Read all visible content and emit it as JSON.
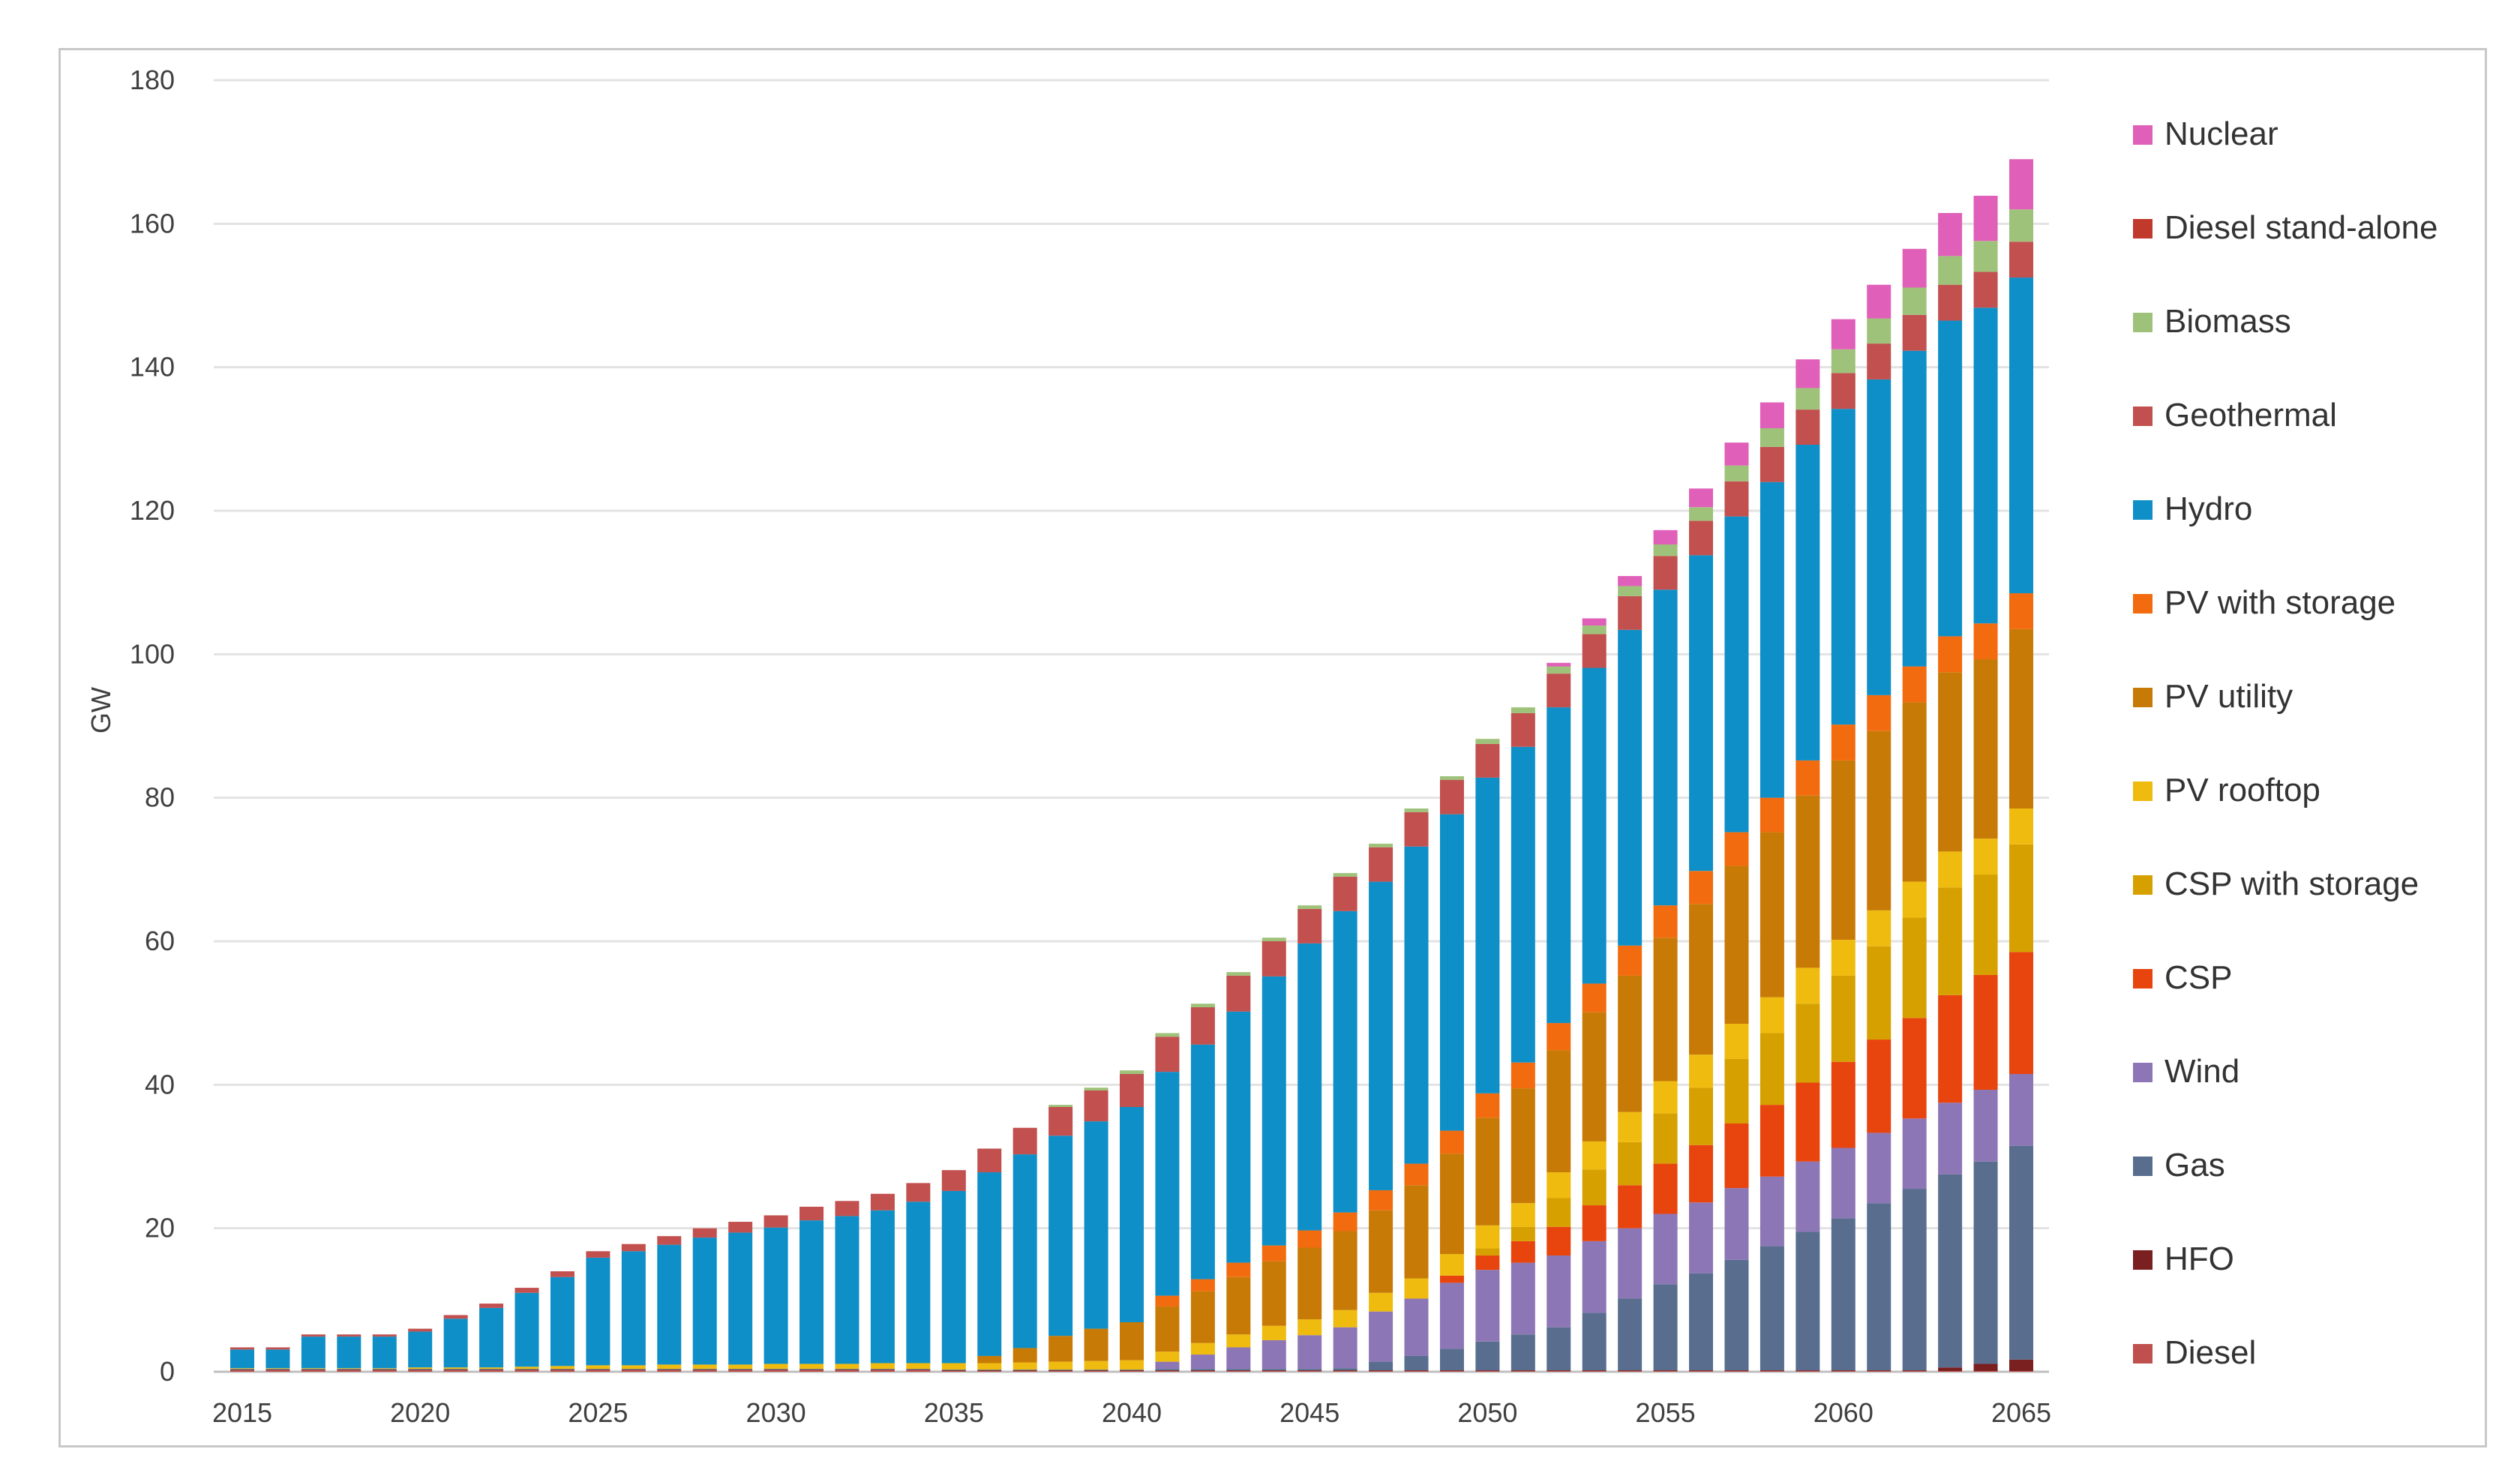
{
  "chart_data": {
    "type": "bar",
    "stacked": true,
    "title": "",
    "xlabel": "",
    "ylabel": "GW",
    "ylim": [
      0,
      180
    ],
    "yticks": [
      0,
      20,
      40,
      60,
      80,
      100,
      120,
      140,
      160,
      180
    ],
    "grid": true,
    "legend_position": "right",
    "x": [
      2015,
      2016,
      2017,
      2018,
      2019,
      2020,
      2021,
      2022,
      2023,
      2024,
      2025,
      2026,
      2027,
      2028,
      2029,
      2030,
      2031,
      2032,
      2033,
      2034,
      2035,
      2036,
      2037,
      2038,
      2039,
      2040,
      2041,
      2042,
      2043,
      2044,
      2045,
      2046,
      2047,
      2048,
      2049,
      2050,
      2051,
      2052,
      2053,
      2054,
      2055,
      2056,
      2057,
      2058,
      2059,
      2060,
      2061,
      2062,
      2063,
      2064,
      2065
    ],
    "xtick_labels": [
      "2015",
      "2020",
      "2025",
      "2030",
      "2035",
      "2040",
      "2045",
      "2050",
      "2055",
      "2060",
      "2065"
    ],
    "series": [
      {
        "name": "Diesel",
        "color": "#c0504d",
        "values": [
          0.2,
          0.2,
          0.2,
          0.2,
          0.2,
          0.2,
          0.2,
          0.2,
          0.2,
          0.2,
          0.2,
          0.2,
          0.2,
          0.2,
          0.2,
          0.2,
          0.2,
          0.2,
          0.2,
          0.2,
          0.1,
          0.1,
          0.1,
          0.1,
          0.1,
          0.1,
          0.1,
          0.1,
          0.1,
          0.1,
          0.1,
          0.1,
          0.1,
          0.1,
          0.1,
          0.1,
          0.1,
          0.1,
          0.1,
          0.1,
          0.1,
          0.1,
          0.1,
          0.1,
          0.1,
          0.1,
          0.1,
          0.1,
          0.1,
          0.1,
          0.1
        ]
      },
      {
        "name": "HFO",
        "color": "#7b2020",
        "values": [
          0.1,
          0.1,
          0.1,
          0.1,
          0.1,
          0.1,
          0.1,
          0.1,
          0.1,
          0.1,
          0.1,
          0.1,
          0.1,
          0.1,
          0.1,
          0.1,
          0.1,
          0.1,
          0.1,
          0.1,
          0.1,
          0.1,
          0.1,
          0.1,
          0.1,
          0.1,
          0.1,
          0.1,
          0.1,
          0.1,
          0.1,
          0.1,
          0.1,
          0.1,
          0.1,
          0.1,
          0.1,
          0.1,
          0.1,
          0.1,
          0.1,
          0.1,
          0.1,
          0.1,
          0.1,
          0.1,
          0.1,
          0.1,
          0.5,
          1.0,
          1.6
        ]
      },
      {
        "name": "Gas",
        "color": "#596e8f",
        "values": [
          0.1,
          0.1,
          0.1,
          0.1,
          0.1,
          0.1,
          0.1,
          0.1,
          0.1,
          0.1,
          0.1,
          0.1,
          0.1,
          0.1,
          0.1,
          0.1,
          0.1,
          0.1,
          0.1,
          0.1,
          0.1,
          0.1,
          0.1,
          0.1,
          0.1,
          0.1,
          0.2,
          0.2,
          0.2,
          0.2,
          0.2,
          0.3,
          1.2,
          2.0,
          3.0,
          4.0,
          5.0,
          6.0,
          8.0,
          10.0,
          12.0,
          13.5,
          15.4,
          17.3,
          19.3,
          21.2,
          23.3,
          25.3,
          26.9,
          28.2,
          29.8
        ]
      },
      {
        "name": "Wind",
        "color": "#8d76b5",
        "values": [
          0,
          0,
          0,
          0,
          0,
          0,
          0,
          0,
          0,
          0,
          0,
          0,
          0,
          0,
          0,
          0,
          0,
          0,
          0,
          0,
          0,
          0,
          0,
          0,
          0,
          0,
          1.0,
          2.0,
          3.0,
          4.0,
          4.7,
          5.7,
          7.0,
          8.0,
          9.2,
          10.0,
          10.0,
          10.0,
          10.0,
          9.8,
          9.8,
          9.9,
          10.0,
          9.7,
          9.8,
          9.8,
          9.8,
          9.8,
          10.0,
          10.0,
          10.0
        ]
      },
      {
        "name": "CSP",
        "color": "#e8440e",
        "values": [
          0,
          0,
          0,
          0,
          0,
          0,
          0,
          0,
          0,
          0,
          0,
          0,
          0,
          0,
          0,
          0,
          0,
          0,
          0,
          0,
          0,
          0,
          0,
          0,
          0,
          0,
          0,
          0,
          0,
          0,
          0,
          0,
          0,
          0,
          1.0,
          2.0,
          3.0,
          4.0,
          5.0,
          6.0,
          7.0,
          8.0,
          9.0,
          10.0,
          11.0,
          12.0,
          13.0,
          14.0,
          15.0,
          16.0,
          17.0
        ]
      },
      {
        "name": "CSP with storage",
        "color": "#d6a100",
        "values": [
          0,
          0,
          0,
          0,
          0,
          0,
          0,
          0,
          0,
          0,
          0,
          0,
          0,
          0,
          0,
          0,
          0,
          0,
          0,
          0,
          0,
          0,
          0,
          0,
          0,
          0,
          0,
          0,
          0,
          0,
          0,
          0,
          0,
          0,
          0,
          1.0,
          2.0,
          4.0,
          5.0,
          6.0,
          7.0,
          8.0,
          9.0,
          10.0,
          11.0,
          12.0,
          13.0,
          14.0,
          15.0,
          14.0,
          15.0
        ]
      },
      {
        "name": "PV rooftop",
        "color": "#efbb0e",
        "values": [
          0.1,
          0.1,
          0.1,
          0.1,
          0.1,
          0.2,
          0.2,
          0.2,
          0.3,
          0.4,
          0.5,
          0.5,
          0.6,
          0.6,
          0.6,
          0.7,
          0.7,
          0.7,
          0.8,
          0.8,
          0.9,
          0.9,
          1.0,
          1.1,
          1.2,
          1.3,
          1.4,
          1.6,
          1.8,
          2.0,
          2.2,
          2.4,
          2.6,
          2.8,
          3.0,
          3.2,
          3.3,
          3.6,
          3.9,
          4.2,
          4.5,
          4.6,
          4.9,
          5.0,
          5.0,
          5.0,
          5.0,
          5.0,
          5.0,
          5.0,
          5.0
        ]
      },
      {
        "name": "PV utility",
        "color": "#c87a06",
        "values": [
          0,
          0,
          0,
          0,
          0,
          0,
          0,
          0,
          0,
          0,
          0,
          0,
          0,
          0,
          0,
          0,
          0,
          0,
          0,
          0,
          0,
          1.0,
          2.0,
          3.6,
          4.5,
          5.3,
          6.3,
          7.2,
          8.0,
          9.0,
          10.0,
          11.0,
          11.5,
          13.0,
          14.0,
          15.0,
          16.0,
          17.0,
          18.0,
          19.0,
          20.0,
          21.0,
          22.0,
          23.0,
          24.0,
          25.0,
          25.0,
          25.0,
          25.0,
          25.0,
          25.0
        ]
      },
      {
        "name": "PV with storage",
        "color": "#f26b0f",
        "values": [
          0,
          0,
          0,
          0,
          0,
          0,
          0,
          0,
          0,
          0,
          0,
          0,
          0,
          0,
          0,
          0,
          0,
          0,
          0,
          0,
          0,
          0,
          0,
          0,
          0,
          0,
          1.5,
          1.7,
          2.0,
          2.2,
          2.4,
          2.6,
          2.8,
          3.0,
          3.2,
          3.4,
          3.6,
          3.8,
          4.0,
          4.2,
          4.5,
          4.6,
          4.7,
          4.8,
          4.9,
          5.0,
          5.0,
          5.0,
          5.0,
          5.0,
          5.0
        ]
      },
      {
        "name": "Hydro",
        "color": "#0f8fc7",
        "values": [
          2.6,
          2.6,
          4.4,
          4.4,
          4.4,
          5.0,
          6.8,
          8.3,
          10.3,
          12.4,
          15.0,
          15.9,
          16.7,
          17.7,
          18.4,
          19.0,
          20.0,
          20.6,
          21.3,
          22.5,
          24.0,
          25.6,
          27.0,
          27.9,
          28.9,
          30.0,
          31.2,
          32.7,
          35.0,
          37.5,
          40.0,
          42.0,
          43.0,
          44.2,
          44.1,
          44.0,
          44.0,
          44.0,
          44.0,
          44.0,
          44.0,
          44.0,
          44.0,
          44.0,
          44.0,
          44.0,
          44.0,
          44.0,
          44.0,
          44.0,
          44.0
        ]
      },
      {
        "name": "Geothermal",
        "color": "#c1504f",
        "values": [
          0.3,
          0.3,
          0.3,
          0.3,
          0.3,
          0.4,
          0.5,
          0.6,
          0.7,
          0.8,
          0.9,
          1.0,
          1.2,
          1.3,
          1.5,
          1.7,
          1.9,
          2.1,
          2.3,
          2.6,
          2.9,
          3.3,
          3.7,
          4.0,
          4.3,
          4.6,
          4.9,
          5.2,
          5.0,
          4.9,
          4.8,
          4.8,
          4.8,
          4.8,
          4.8,
          4.7,
          4.7,
          4.7,
          4.7,
          4.7,
          4.7,
          4.8,
          4.9,
          4.9,
          4.9,
          5.0,
          5.0,
          5.0,
          5.0,
          5.0,
          5.0
        ]
      },
      {
        "name": "Biomass",
        "color": "#9fc27a",
        "values": [
          0,
          0,
          0,
          0,
          0,
          0,
          0,
          0,
          0,
          0,
          0,
          0,
          0,
          0,
          0,
          0,
          0,
          0,
          0,
          0,
          0,
          0,
          0,
          0.3,
          0.4,
          0.5,
          0.5,
          0.5,
          0.5,
          0.5,
          0.5,
          0.5,
          0.5,
          0.5,
          0.5,
          0.7,
          0.8,
          1.0,
          1.2,
          1.4,
          1.6,
          1.9,
          2.2,
          2.6,
          3.0,
          3.3,
          3.5,
          3.8,
          4.0,
          4.3,
          4.5
        ]
      },
      {
        "name": "Diesel stand-alone",
        "color": "#c0392b",
        "values": [
          0,
          0,
          0,
          0,
          0,
          0,
          0,
          0,
          0,
          0,
          0,
          0,
          0,
          0,
          0,
          0,
          0,
          0,
          0,
          0,
          0,
          0,
          0,
          0,
          0,
          0,
          0,
          0,
          0,
          0,
          0,
          0,
          0,
          0,
          0,
          0,
          0,
          0,
          0,
          0,
          0,
          0,
          0,
          0,
          0,
          0,
          0,
          0,
          0,
          0,
          0
        ]
      },
      {
        "name": "Nuclear",
        "color": "#e05fb8",
        "values": [
          0,
          0,
          0,
          0,
          0,
          0,
          0,
          0,
          0,
          0,
          0,
          0,
          0,
          0,
          0,
          0,
          0,
          0,
          0,
          0,
          0,
          0,
          0,
          0,
          0,
          0,
          0,
          0,
          0,
          0,
          0,
          0,
          0,
          0,
          0,
          0,
          0,
          0.5,
          1.0,
          1.4,
          2.0,
          2.6,
          3.2,
          3.6,
          4.0,
          4.2,
          4.7,
          5.4,
          6.0,
          6.3,
          7.0
        ]
      }
    ]
  }
}
